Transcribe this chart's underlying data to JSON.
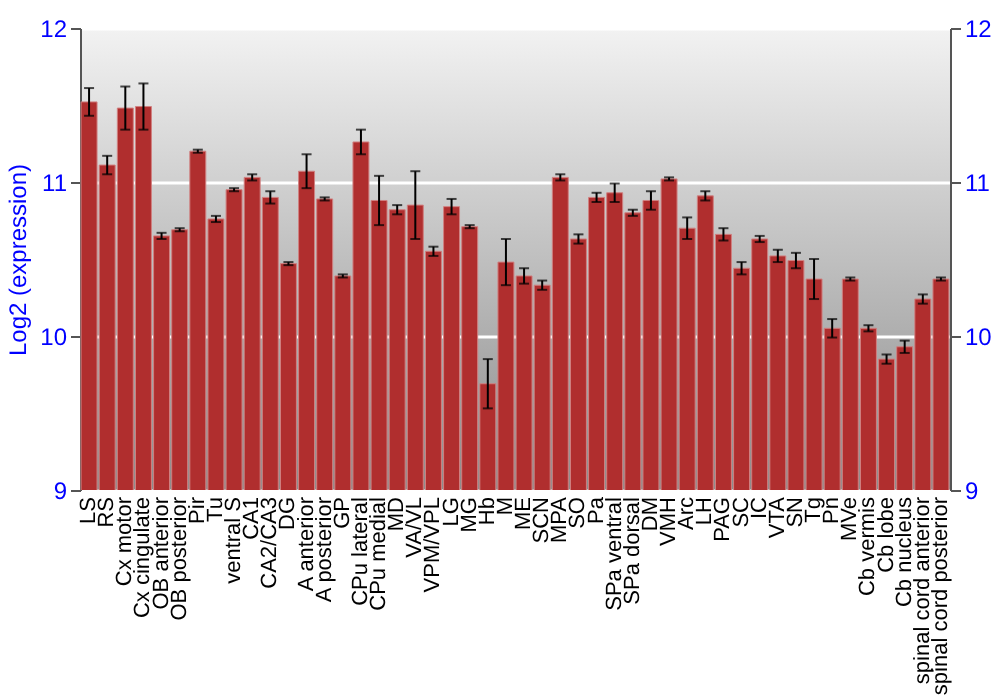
{
  "chart_data": {
    "type": "bar",
    "ylabel": "Log2 (expression)",
    "categories": [
      "LS",
      "RS",
      "Cx motor",
      "Cx cingulate",
      "OB anterior",
      "OB posterior",
      "Pir",
      "Tu",
      "ventral S",
      "CA1",
      "CA2/CA3",
      "DG",
      "A anterior",
      "A posterior",
      "GP",
      "CPu lateral",
      "CPu medial",
      "MD",
      "VA/VL",
      "VPM/VPL",
      "LG",
      "MG",
      "Hb",
      "M",
      "ME",
      "SCN",
      "MPA",
      "SO",
      "Pa",
      "SPa ventral",
      "SPa dorsal",
      "DM",
      "VMH",
      "Arc",
      "LH",
      "PAG",
      "SC",
      "IC",
      "VTA",
      "SN",
      "Tg",
      "Pn",
      "MVe",
      "Cb vermis",
      "Cb lobe",
      "Cb nucleus",
      "spinal cord anterior",
      "spinal cord posterior"
    ],
    "values": [
      11.52,
      11.11,
      11.48,
      11.49,
      10.65,
      10.69,
      11.2,
      10.76,
      10.95,
      11.03,
      10.9,
      10.47,
      11.07,
      10.89,
      10.39,
      11.26,
      10.88,
      10.82,
      10.85,
      10.55,
      10.84,
      10.71,
      9.69,
      10.48,
      10.39,
      10.33,
      11.03,
      10.63,
      10.9,
      10.93,
      10.8,
      10.88,
      11.02,
      10.7,
      10.91,
      10.66,
      10.44,
      10.63,
      10.52,
      10.49,
      10.37,
      10.05,
      10.37,
      10.05,
      9.85,
      9.93,
      10.24,
      10.37
    ],
    "errors": [
      0.09,
      0.06,
      0.14,
      0.15,
      0.02,
      0.01,
      0.01,
      0.02,
      0.01,
      0.02,
      0.04,
      0.01,
      0.11,
      0.01,
      0.01,
      0.08,
      0.16,
      0.03,
      0.22,
      0.03,
      0.05,
      0.01,
      0.16,
      0.15,
      0.05,
      0.03,
      0.02,
      0.03,
      0.03,
      0.06,
      0.02,
      0.06,
      0.01,
      0.07,
      0.03,
      0.04,
      0.04,
      0.02,
      0.04,
      0.05,
      0.13,
      0.06,
      0.01,
      0.02,
      0.03,
      0.04,
      0.03,
      0.01
    ],
    "color": "#b02e2e",
    "ylim": [
      9,
      12
    ],
    "yticks": [
      9,
      10,
      11,
      12
    ],
    "y2lim": [
      9,
      12
    ],
    "y2ticks": [
      9,
      10,
      11,
      12
    ],
    "grid": "y"
  }
}
